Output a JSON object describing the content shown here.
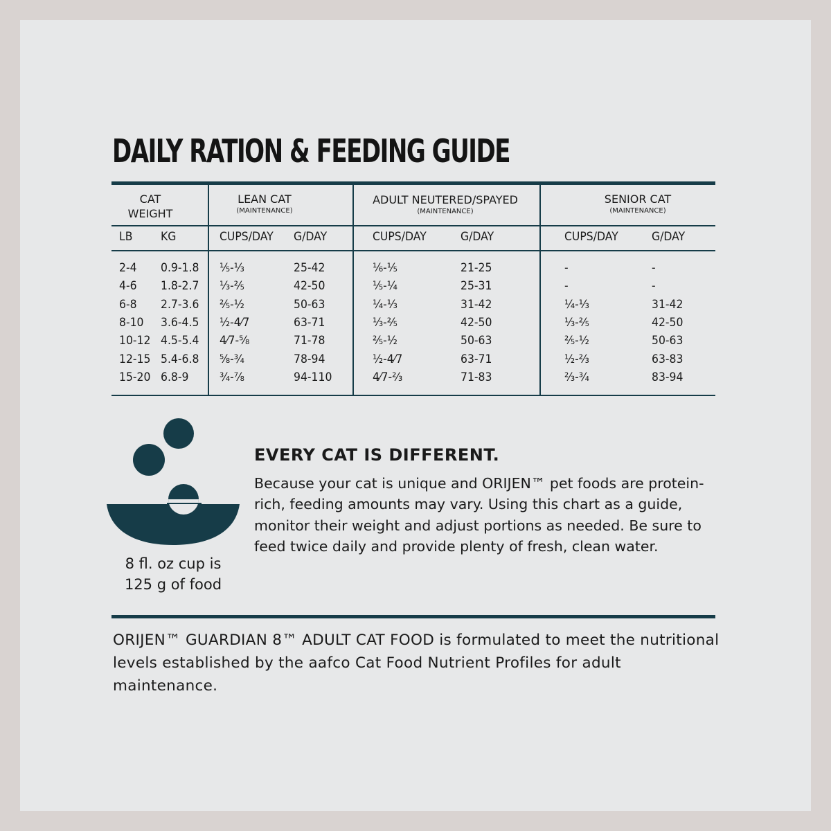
{
  "title": "DAILY RATION & FEEDING GUIDE",
  "table": {
    "groups": [
      {
        "label": "CAT",
        "label2": "WEIGHT",
        "sub": ""
      },
      {
        "label": "LEAN CAT",
        "label2": "",
        "sub": "(MAINTENANCE)"
      },
      {
        "label": "ADULT NEUTERED/SPAYED",
        "label2": "",
        "sub": "(MAINTENANCE)"
      },
      {
        "label": "SENIOR CAT",
        "label2": "",
        "sub": "(MAINTENANCE)"
      }
    ],
    "columns": [
      "LB",
      "KG",
      "CUPS/DAY",
      "G/DAY",
      "CUPS/DAY",
      "G/DAY",
      "CUPS/DAY",
      "G/DAY"
    ],
    "rows": [
      [
        "2-4",
        "0.9-1.8",
        "⅕-⅓",
        "25-42",
        "⅙-⅕",
        "21-25",
        "-",
        "-"
      ],
      [
        "4-6",
        "1.8-2.7",
        "⅓-⅖",
        "42-50",
        "⅕-¼",
        "25-31",
        "-",
        "-"
      ],
      [
        "6-8",
        "2.7-3.6",
        "⅖-½",
        "50-63",
        "¼-⅓",
        "31-42",
        "¼-⅓",
        "31-42"
      ],
      [
        "8-10",
        "3.6-4.5",
        "½-4⁄7",
        "63-71",
        "⅓-⅖",
        "42-50",
        "⅓-⅖",
        "42-50"
      ],
      [
        "10-12",
        "4.5-5.4",
        "4⁄7-⅝",
        "71-78",
        "⅖-½",
        "50-63",
        "⅖-½",
        "50-63"
      ],
      [
        "12-15",
        "5.4-6.8",
        "⅝-¾",
        "78-94",
        "½-4⁄7",
        "63-71",
        "½-⅔",
        "63-83"
      ],
      [
        "15-20",
        "6.8-9",
        "¾-⅞",
        "94-110",
        "4⁄7-⅔",
        "71-83",
        "⅔-¾",
        "83-94"
      ]
    ]
  },
  "icon": "bowl-with-kibble-icon",
  "cup_note": {
    "line1": "8 fl. oz cup is",
    "line2": "125 g of food"
  },
  "every_cat": {
    "heading": "EVERY CAT IS DIFFERENT.",
    "body": "Because your cat is unique and ORIJEN™ pet foods are protein-rich, feeding amounts may vary. Using this chart as a guide, monitor their weight and adjust portions as needed. Be sure to feed twice daily and provide plenty of fresh, clean water."
  },
  "footer": "ORIJEN™ GUARDIAN 8™ ADULT CAT FOOD is formulated to meet the nutritional levels established by the aafco Cat Food Nutrient Profiles for adult maintenance.",
  "colors": {
    "accent": "#163c48",
    "background": "#e7e8e9",
    "frame": "#d9d3d1"
  }
}
